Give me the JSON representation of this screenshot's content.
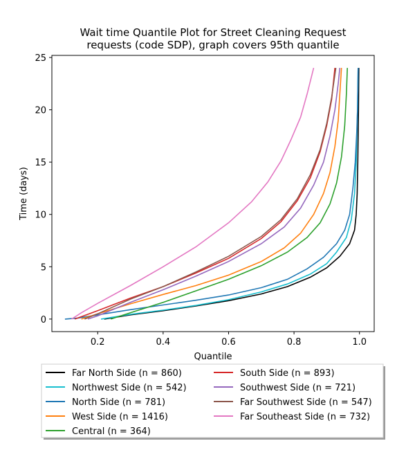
{
  "chart_data": {
    "type": "line",
    "title": [
      "Wait time Quantile Plot for Street Cleaning Request",
      "requests (code SDP), graph covers 95th quantile"
    ],
    "xlabel": "Quantile",
    "ylabel": "Time (days)",
    "xlim": [
      0.06,
      1.045
    ],
    "ylim": [
      -1.2,
      25.2
    ],
    "xticks": [
      0.2,
      0.4,
      0.6,
      0.8,
      1.0
    ],
    "xtick_labels": [
      "0.2",
      "0.4",
      "0.6",
      "0.8",
      "1.0"
    ],
    "yticks": [
      0,
      5,
      10,
      15,
      20,
      25
    ],
    "ytick_labels": [
      "0",
      "5",
      "10",
      "15",
      "20",
      "25"
    ],
    "grid": false,
    "legend_position": "below",
    "series": [
      {
        "name": "Far North Side (n = 860)",
        "color": "#000000",
        "points": [
          [
            0.22,
            0
          ],
          [
            0.3,
            0.4
          ],
          [
            0.4,
            0.8
          ],
          [
            0.5,
            1.25
          ],
          [
            0.6,
            1.75
          ],
          [
            0.7,
            2.4
          ],
          [
            0.78,
            3.1
          ],
          [
            0.85,
            4.0
          ],
          [
            0.9,
            4.9
          ],
          [
            0.94,
            6.0
          ],
          [
            0.97,
            7.2
          ],
          [
            0.985,
            8.5
          ],
          [
            0.99,
            10
          ],
          [
            0.993,
            12
          ],
          [
            0.995,
            15
          ],
          [
            0.997,
            20
          ],
          [
            0.998,
            24
          ]
        ]
      },
      {
        "name": "Northwest Side (n = 542)",
        "color": "#17becf",
        "points": [
          [
            0.21,
            0
          ],
          [
            0.3,
            0.45
          ],
          [
            0.4,
            0.85
          ],
          [
            0.5,
            1.3
          ],
          [
            0.6,
            1.85
          ],
          [
            0.7,
            2.6
          ],
          [
            0.78,
            3.35
          ],
          [
            0.85,
            4.3
          ],
          [
            0.9,
            5.3
          ],
          [
            0.93,
            6.4
          ],
          [
            0.96,
            7.8
          ],
          [
            0.975,
            9.5
          ],
          [
            0.985,
            12
          ],
          [
            0.99,
            15
          ],
          [
            0.994,
            20
          ],
          [
            0.996,
            24
          ]
        ]
      },
      {
        "name": "North Side (n = 781)",
        "color": "#1f77b4",
        "points": [
          [
            0.1,
            0
          ],
          [
            0.14,
            0.1
          ],
          [
            0.2,
            0.4
          ],
          [
            0.3,
            0.9
          ],
          [
            0.4,
            1.35
          ],
          [
            0.5,
            1.8
          ],
          [
            0.6,
            2.3
          ],
          [
            0.7,
            3.0
          ],
          [
            0.78,
            3.8
          ],
          [
            0.84,
            4.8
          ],
          [
            0.89,
            5.9
          ],
          [
            0.93,
            7.2
          ],
          [
            0.955,
            8.5
          ],
          [
            0.97,
            10
          ],
          [
            0.98,
            12.5
          ],
          [
            0.987,
            15
          ],
          [
            0.992,
            18
          ],
          [
            0.994,
            20
          ],
          [
            0.996,
            24
          ]
        ]
      },
      {
        "name": "West Side (n = 1416)",
        "color": "#ff7f0e",
        "points": [
          [
            0.15,
            0
          ],
          [
            0.2,
            0.5
          ],
          [
            0.3,
            1.45
          ],
          [
            0.4,
            2.35
          ],
          [
            0.5,
            3.2
          ],
          [
            0.6,
            4.2
          ],
          [
            0.7,
            5.5
          ],
          [
            0.77,
            6.8
          ],
          [
            0.82,
            8.2
          ],
          [
            0.86,
            10
          ],
          [
            0.89,
            12
          ],
          [
            0.91,
            14
          ],
          [
            0.925,
            16.5
          ],
          [
            0.935,
            19
          ],
          [
            0.94,
            21.5
          ],
          [
            0.945,
            24
          ]
        ]
      },
      {
        "name": "Central (n = 364)",
        "color": "#2ca02c",
        "points": [
          [
            0.24,
            0
          ],
          [
            0.3,
            0.6
          ],
          [
            0.4,
            1.6
          ],
          [
            0.5,
            2.7
          ],
          [
            0.6,
            3.8
          ],
          [
            0.7,
            5.1
          ],
          [
            0.78,
            6.4
          ],
          [
            0.84,
            7.8
          ],
          [
            0.88,
            9.2
          ],
          [
            0.91,
            11
          ],
          [
            0.93,
            13
          ],
          [
            0.945,
            15.5
          ],
          [
            0.955,
            18.5
          ],
          [
            0.96,
            21.5
          ],
          [
            0.963,
            24
          ]
        ]
      },
      {
        "name": "South Side (n = 893)",
        "color": "#d62728",
        "points": [
          [
            0.13,
            0
          ],
          [
            0.2,
            0.8
          ],
          [
            0.3,
            2.0
          ],
          [
            0.4,
            3.1
          ],
          [
            0.5,
            4.4
          ],
          [
            0.6,
            5.8
          ],
          [
            0.7,
            7.7
          ],
          [
            0.76,
            9.3
          ],
          [
            0.81,
            11.3
          ],
          [
            0.85,
            13.5
          ],
          [
            0.88,
            16
          ],
          [
            0.9,
            18.5
          ],
          [
            0.915,
            21
          ],
          [
            0.925,
            24
          ]
        ]
      },
      {
        "name": "Southwest Side (n = 721)",
        "color": "#9467bd",
        "points": [
          [
            0.17,
            0
          ],
          [
            0.2,
            0.3
          ],
          [
            0.3,
            1.6
          ],
          [
            0.4,
            2.8
          ],
          [
            0.5,
            4.1
          ],
          [
            0.6,
            5.5
          ],
          [
            0.7,
            7.2
          ],
          [
            0.77,
            8.8
          ],
          [
            0.82,
            10.6
          ],
          [
            0.86,
            12.8
          ],
          [
            0.89,
            15
          ],
          [
            0.91,
            17.5
          ],
          [
            0.925,
            20
          ],
          [
            0.935,
            22.5
          ],
          [
            0.94,
            24
          ]
        ]
      },
      {
        "name": "Far Southwest Side (n = 547)",
        "color": "#8c564b",
        "points": [
          [
            0.16,
            0
          ],
          [
            0.2,
            0.5
          ],
          [
            0.3,
            1.9
          ],
          [
            0.4,
            3.1
          ],
          [
            0.5,
            4.5
          ],
          [
            0.6,
            6.0
          ],
          [
            0.7,
            7.9
          ],
          [
            0.76,
            9.5
          ],
          [
            0.81,
            11.5
          ],
          [
            0.85,
            13.8
          ],
          [
            0.88,
            16.2
          ],
          [
            0.9,
            18.7
          ],
          [
            0.915,
            21.2
          ],
          [
            0.928,
            24
          ]
        ]
      },
      {
        "name": "Far Southeast Side (n = 732)",
        "color": "#e377c2",
        "points": [
          [
            0.12,
            0
          ],
          [
            0.15,
            0.6
          ],
          [
            0.2,
            1.5
          ],
          [
            0.3,
            3.2
          ],
          [
            0.4,
            5.0
          ],
          [
            0.5,
            6.9
          ],
          [
            0.6,
            9.2
          ],
          [
            0.67,
            11.2
          ],
          [
            0.72,
            13.1
          ],
          [
            0.76,
            15.1
          ],
          [
            0.79,
            17.1
          ],
          [
            0.82,
            19.3
          ],
          [
            0.84,
            21.5
          ],
          [
            0.86,
            24
          ]
        ]
      }
    ]
  }
}
